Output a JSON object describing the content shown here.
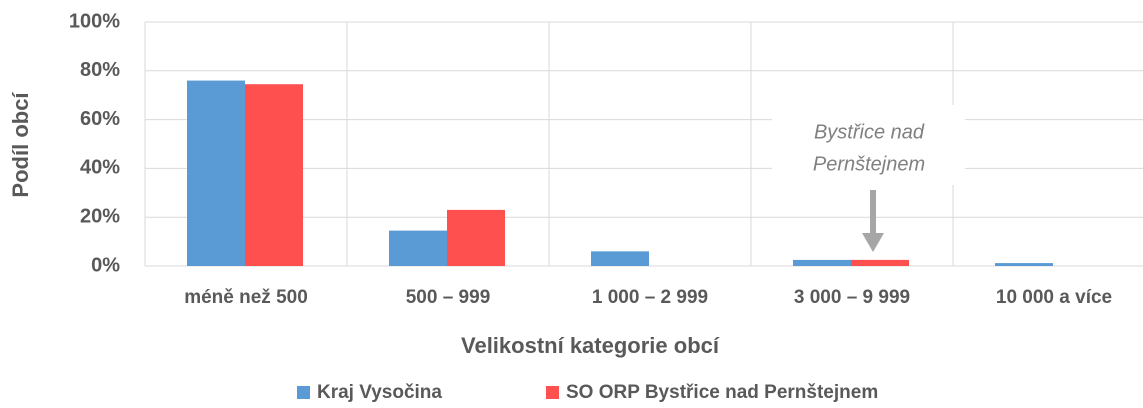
{
  "chart_data": {
    "type": "bar",
    "categories": [
      "méně než 500",
      "500 – 999",
      "1 000 – 2 999",
      "3 000 – 9 999",
      "10 000 a více"
    ],
    "series": [
      {
        "name": "Kraj Vysočina",
        "color": "#5b9bd5",
        "values": [
          76,
          14.5,
          6,
          2.5,
          1.2
        ]
      },
      {
        "name": "SO ORP Bystřice nad Pernštejnem",
        "color": "#ff5050",
        "values": [
          74.5,
          23,
          0,
          2.5,
          0
        ]
      }
    ],
    "ylim": [
      0,
      100
    ],
    "yticks": [
      {
        "value": 0,
        "label": "0%"
      },
      {
        "value": 20,
        "label": "20%"
      },
      {
        "value": 40,
        "label": "40%"
      },
      {
        "value": 60,
        "label": "60%"
      },
      {
        "value": 80,
        "label": "80%"
      },
      {
        "value": 100,
        "label": "100%"
      }
    ],
    "xlabel": "Velikostní kategorie obcí",
    "ylabel": "Podíl obcí",
    "annotation": [
      "Bystřice nad",
      "Pernštejnem"
    ],
    "grid": true,
    "legend": "bottom"
  }
}
